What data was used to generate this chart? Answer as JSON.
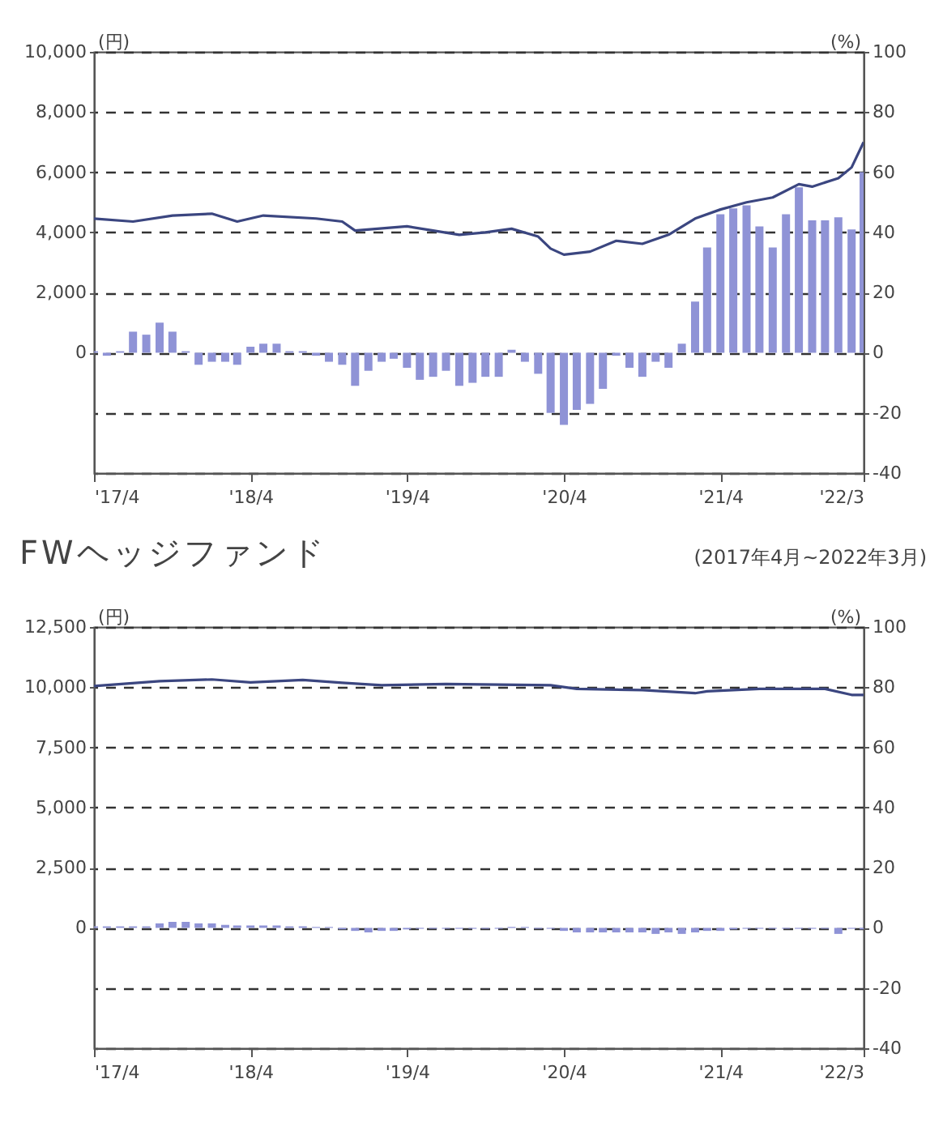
{
  "chart_data": [
    {
      "type": "bar",
      "ylabel": "(円)",
      "y2label": "(%)",
      "grid": "y",
      "x": [
        "2017-04",
        "2017-05",
        "2017-06",
        "2017-07",
        "2017-08",
        "2017-09",
        "2017-10",
        "2017-11",
        "2017-12",
        "2018-01",
        "2018-02",
        "2018-03",
        "2018-04",
        "2018-05",
        "2018-06",
        "2018-07",
        "2018-08",
        "2018-09",
        "2018-10",
        "2018-11",
        "2018-12",
        "2019-01",
        "2019-02",
        "2019-03",
        "2019-04",
        "2019-05",
        "2019-06",
        "2019-07",
        "2019-08",
        "2019-09",
        "2019-10",
        "2019-11",
        "2019-12",
        "2020-01",
        "2020-02",
        "2020-03",
        "2020-04",
        "2020-05",
        "2020-06",
        "2020-07",
        "2020-08",
        "2020-09",
        "2020-10",
        "2020-11",
        "2020-12",
        "2021-01",
        "2021-02",
        "2021-03",
        "2021-04",
        "2021-05",
        "2021-06",
        "2021-07",
        "2021-08",
        "2021-09",
        "2021-10",
        "2021-11",
        "2021-12",
        "2022-01",
        "2022-02",
        "2022-03"
      ],
      "xlim": [
        "2017-04",
        "2022-03"
      ],
      "xticks": [
        {
          "value": "2017-04",
          "label": "'17/4"
        },
        {
          "value": "2018-04",
          "label": "'18/4"
        },
        {
          "value": "2019-04",
          "label": "'19/4"
        },
        {
          "value": "2020-04",
          "label": "'20/4"
        },
        {
          "value": "2021-04",
          "label": "'21/4"
        },
        {
          "value": "2022-03",
          "label": "'22/3"
        }
      ],
      "ylim": [
        -4000,
        10000
      ],
      "yticks": [
        0,
        {
          "value": 2000,
          "label": "2,000"
        },
        {
          "value": 4000,
          "label": "4,000"
        },
        {
          "value": 6000,
          "label": "6,000"
        },
        {
          "value": 8000,
          "label": "8,000"
        },
        {
          "value": 10000,
          "label": "10,000"
        }
      ],
      "y2lim": [
        -40,
        100
      ],
      "y2ticks": [
        -40,
        -20,
        0,
        20,
        40,
        60,
        80,
        100
      ],
      "series": [
        {
          "type": "line",
          "axis": "y",
          "color": "#3b4680",
          "x": [
            "2017-04",
            "2017-07",
            "2017-10",
            "2018-01",
            "2018-03",
            "2018-05",
            "2018-09",
            "2018-11",
            "2018-12",
            "2019-04",
            "2019-06",
            "2019-08",
            "2019-10",
            "2019-12",
            "2020-02",
            "2020-03",
            "2020-04",
            "2020-06",
            "2020-08",
            "2020-10",
            "2020-12",
            "2021-02",
            "2021-04",
            "2021-06",
            "2021-08",
            "2021-10",
            "2021-11",
            "2022-01",
            "2022-02",
            "2022-03"
          ],
          "values": [
            4460,
            4360,
            4560,
            4620,
            4360,
            4560,
            4460,
            4360,
            4060,
            4200,
            4060,
            3920,
            4000,
            4120,
            3860,
            3460,
            3260,
            3360,
            3720,
            3620,
            3920,
            4460,
            4760,
            5000,
            5160,
            5600,
            5520,
            5800,
            6160,
            7000
          ]
        },
        {
          "axis": "y2",
          "color": "#8f93d6",
          "values": [
            0.5,
            -1,
            0.5,
            7,
            6,
            10,
            7,
            0.5,
            -4,
            -3,
            -3,
            -4,
            2,
            3,
            3,
            0.5,
            0.5,
            -1,
            -3,
            -4,
            -11,
            -6,
            -3,
            -2,
            -5,
            -9,
            -8,
            -6,
            -11,
            -10,
            -8,
            -8,
            1,
            -3,
            -7,
            -20,
            -24,
            -19,
            -17,
            -12,
            -1,
            -5,
            -8,
            -3,
            -5,
            3,
            17,
            35,
            46,
            48,
            49,
            42,
            35,
            46,
            55,
            44,
            44,
            45,
            41,
            60
          ]
        }
      ]
    },
    {
      "type": "bar",
      "title": "FWヘッジファンド",
      "subtitle": "(2017年4月~2022年3月)",
      "ylabel": "(円)",
      "y2label": "(%)",
      "grid": "y",
      "x": [
        "2017-04",
        "2017-05",
        "2017-06",
        "2017-07",
        "2017-08",
        "2017-09",
        "2017-10",
        "2017-11",
        "2017-12",
        "2018-01",
        "2018-02",
        "2018-03",
        "2018-04",
        "2018-05",
        "2018-06",
        "2018-07",
        "2018-08",
        "2018-09",
        "2018-10",
        "2018-11",
        "2018-12",
        "2019-01",
        "2019-02",
        "2019-03",
        "2019-04",
        "2019-05",
        "2019-06",
        "2019-07",
        "2019-08",
        "2019-09",
        "2019-10",
        "2019-11",
        "2019-12",
        "2020-01",
        "2020-02",
        "2020-03",
        "2020-04",
        "2020-05",
        "2020-06",
        "2020-07",
        "2020-08",
        "2020-09",
        "2020-10",
        "2020-11",
        "2020-12",
        "2021-01",
        "2021-02",
        "2021-03",
        "2021-04",
        "2021-05",
        "2021-06",
        "2021-07",
        "2021-08",
        "2021-09",
        "2021-10",
        "2021-11",
        "2021-12",
        "2022-01",
        "2022-02",
        "2022-03"
      ],
      "xlim": [
        "2017-04",
        "2022-03"
      ],
      "xticks": [
        {
          "value": "2017-04",
          "label": "'17/4"
        },
        {
          "value": "2018-04",
          "label": "'18/4"
        },
        {
          "value": "2019-04",
          "label": "'19/4"
        },
        {
          "value": "2020-04",
          "label": "'20/4"
        },
        {
          "value": "2021-04",
          "label": "'21/4"
        },
        {
          "value": "2022-03",
          "label": "'22/3"
        }
      ],
      "ylim": [
        -5000,
        12500
      ],
      "yticks": [
        0,
        {
          "value": 2500,
          "label": "2,500"
        },
        {
          "value": 5000,
          "label": "5,000"
        },
        {
          "value": 7500,
          "label": "7,500"
        },
        {
          "value": 10000,
          "label": "10,000"
        },
        {
          "value": 12500,
          "label": "12,500"
        }
      ],
      "y2lim": [
        -40,
        100
      ],
      "y2ticks": [
        -40,
        -20,
        0,
        20,
        40,
        60,
        80,
        100
      ],
      "series": [
        {
          "type": "line",
          "axis": "y",
          "color": "#3b4680",
          "x": [
            "2017-04",
            "2017-09",
            "2018-01",
            "2018-04",
            "2018-08",
            "2018-11",
            "2019-02",
            "2019-07",
            "2020-03",
            "2020-05",
            "2020-10",
            "2021-02",
            "2021-03",
            "2021-07",
            "2021-12",
            "2022-02",
            "2022-03"
          ],
          "values": [
            10050,
            10250,
            10320,
            10200,
            10300,
            10180,
            10080,
            10130,
            10080,
            9930,
            9880,
            9750,
            9830,
            9930,
            9930,
            9680,
            9680
          ]
        },
        {
          "axis": "y2",
          "color": "#8f93d6",
          "values": [
            0.5,
            0.5,
            0.5,
            0.5,
            0.5,
            1.5,
            2,
            2,
            1.5,
            1.5,
            1,
            0.8,
            0.8,
            0.8,
            0.8,
            0.5,
            0.5,
            0.3,
            0.3,
            -0.5,
            -1,
            -1.5,
            -1,
            -1,
            -0.5,
            -0.3,
            -0.3,
            -0.3,
            -0.3,
            -0.3,
            -0.3,
            -0.3,
            0.3,
            0.3,
            -0.3,
            -0.3,
            -1,
            -1.5,
            -1.5,
            -1.5,
            -1.5,
            -1.5,
            -1.5,
            -2,
            -1.5,
            -2,
            -1.5,
            -1,
            -1,
            -0.5,
            -0.3,
            -0.3,
            -0.3,
            -0.3,
            -0.3,
            -0.3,
            -0.3,
            -2,
            -0.3,
            -0.5
          ]
        }
      ]
    }
  ]
}
